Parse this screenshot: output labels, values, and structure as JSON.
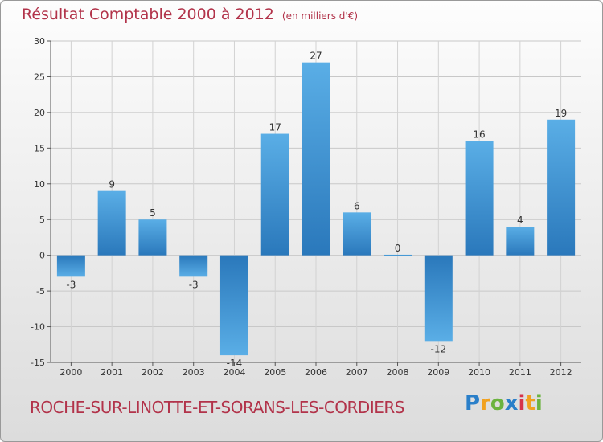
{
  "header": {
    "title": "Résultat Comptable 2000 à 2012",
    "unit": "(en milliers d'€)"
  },
  "footer": {
    "commune": "ROCHE-SUR-LINOTTE-ET-SORANS-LES-CORDIERS",
    "logo": [
      "P",
      "r",
      "o",
      "x",
      "i",
      "t",
      "i"
    ],
    "logo_colors": [
      "#2a7fc9",
      "#f1a11f",
      "#6cb33f",
      "#2a7fc9",
      "#d6334a",
      "#f1a11f",
      "#6cb33f"
    ]
  },
  "chart_data": {
    "type": "bar",
    "categories": [
      "2000",
      "2001",
      "2002",
      "2003",
      "2004",
      "2005",
      "2006",
      "2007",
      "2008",
      "2009",
      "2010",
      "2011",
      "2012"
    ],
    "values": [
      -3,
      9,
      5,
      -3,
      -14,
      17,
      27,
      6,
      0,
      -12,
      16,
      4,
      19
    ],
    "ylim": [
      -15,
      30
    ],
    "yticks": [
      -15,
      -10,
      -5,
      0,
      5,
      10,
      15,
      20,
      25,
      30
    ],
    "grid": true,
    "bar_color_light": "#5aaee6",
    "bar_color_dark": "#2a78bb"
  }
}
